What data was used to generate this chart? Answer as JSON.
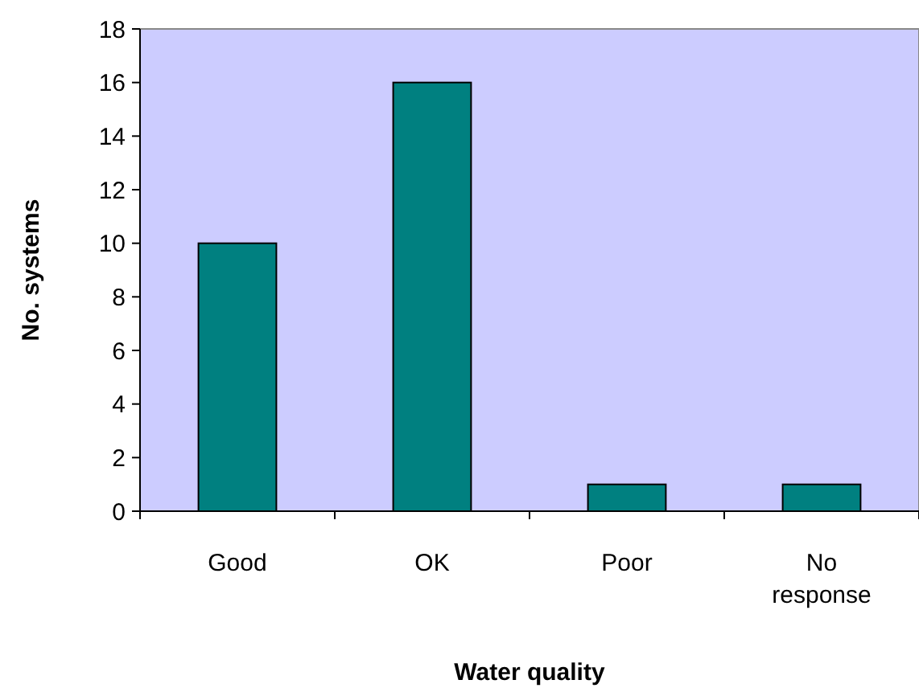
{
  "chart_data": {
    "type": "bar",
    "xlabel": "Water quality",
    "ylabel": "No. systems",
    "categories": [
      "Good",
      "OK",
      "Poor",
      "No response"
    ],
    "values": [
      10,
      16,
      1,
      1
    ],
    "color": "#008080",
    "ylim": [
      0,
      18
    ],
    "yticks": [
      0,
      2,
      4,
      6,
      8,
      10,
      12,
      14,
      16,
      18
    ],
    "grid": false
  }
}
